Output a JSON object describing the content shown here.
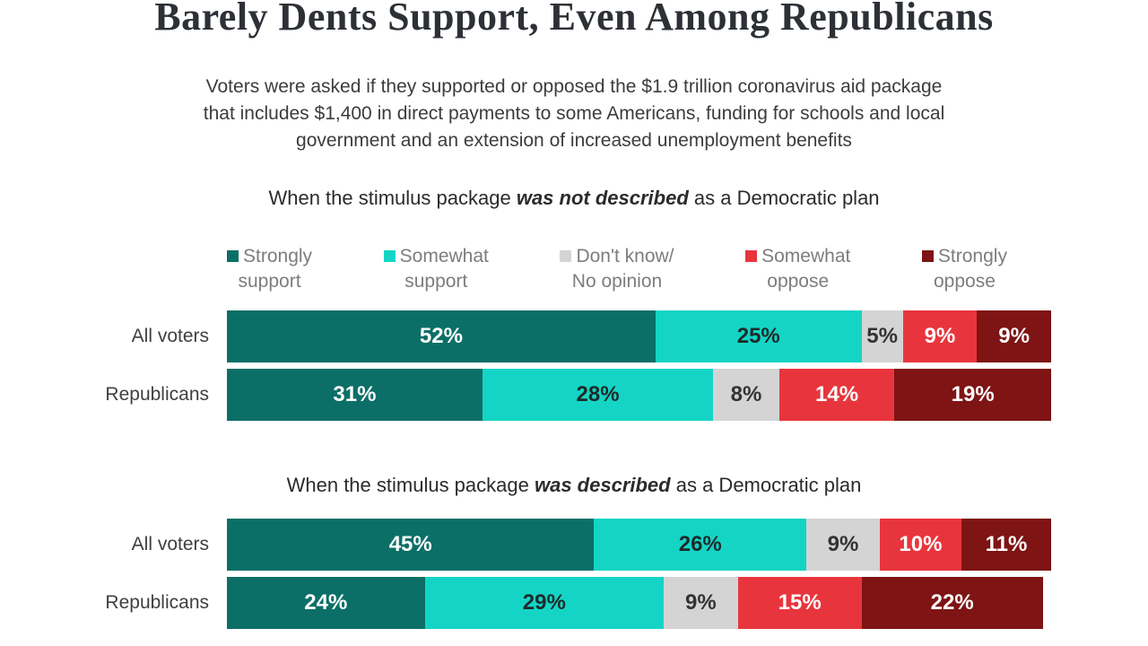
{
  "chart_data": {
    "type": "bar",
    "subtype": "stacked-horizontal",
    "title": "Barely Dents Support, Even Among Republicans",
    "subtitle_lines": [
      "Voters were asked if they supported or opposed the $1.9 trillion coronavirus aid package",
      "that includes $1,400 in direct payments to some Americans, funding for schools and local",
      "government and an extension of increased unemployment benefits"
    ],
    "categories": [
      "Strongly support",
      "Somewhat support",
      "Don't know/ No opinion",
      "Somewhat oppose",
      "Strongly oppose"
    ],
    "colors": [
      "#0c6f67",
      "#14d5c5",
      "#d4d4d4",
      "#e8353d",
      "#7e1414"
    ],
    "value_label_colors": [
      "#ffffff",
      "#1e2a2a",
      "#333333",
      "#ffffff",
      "#ffffff"
    ],
    "value_suffix": "%",
    "xlim": [
      0,
      100
    ],
    "legend_position": "top",
    "legend": [
      {
        "line1": "Strongly",
        "line2": "support",
        "color": "#0c6f67"
      },
      {
        "line1": "Somewhat",
        "line2": "support",
        "color": "#14d5c5"
      },
      {
        "line1": "Don't know/",
        "line2": "No opinion",
        "color": "#d4d4d4"
      },
      {
        "line1": "Somewhat",
        "line2": "oppose",
        "color": "#e8353d"
      },
      {
        "line1": "Strongly",
        "line2": "oppose",
        "color": "#7e1414"
      }
    ],
    "panels": [
      {
        "heading_prefix": "When the stimulus package ",
        "heading_emphasis": "was not described",
        "heading_suffix": " as a Democratic plan",
        "rows": [
          {
            "label": "All voters",
            "values": [
              52,
              25,
              5,
              9,
              9
            ]
          },
          {
            "label": "Republicans",
            "values": [
              31,
              28,
              8,
              14,
              19
            ]
          }
        ]
      },
      {
        "heading_prefix": "When the stimulus package ",
        "heading_emphasis": "was described",
        "heading_suffix": " as a Democratic plan",
        "rows": [
          {
            "label": "All voters",
            "values": [
              45,
              26,
              9,
              10,
              11
            ]
          },
          {
            "label": "Republicans",
            "values": [
              24,
              29,
              9,
              15,
              22
            ]
          }
        ]
      }
    ]
  }
}
